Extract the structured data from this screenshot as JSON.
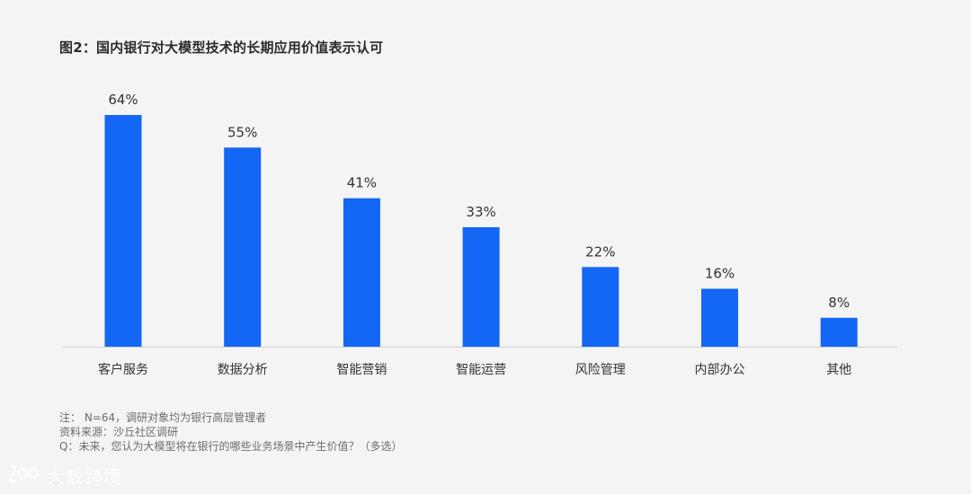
{
  "title": "图2：国内银行对大模型技术的长期应用价值表示认可",
  "notes": {
    "note": "注： N=64，调研对象均为银行高层管理者",
    "source": "资料来源：沙丘社区调研",
    "question": "Q：未来，您认为大模型将在银行的哪些业务场景中产生价值？（多选）"
  },
  "watermark": {
    "text": "大数跨境",
    "icon": "logo-icon"
  },
  "colors": {
    "bar": "#1466f5",
    "axis": "#cfcfcf",
    "label": "#333333",
    "background": "#f4f4f4"
  },
  "chart_data": {
    "type": "bar",
    "categories": [
      "客户服务",
      "数据分析",
      "智能营销",
      "智能运营",
      "风险管理",
      "内部办公",
      "其他"
    ],
    "values": [
      64,
      55,
      41,
      33,
      22,
      16,
      8
    ],
    "value_labels": [
      "64%",
      "55%",
      "41%",
      "33%",
      "22%",
      "16%",
      "8%"
    ],
    "unit": "%",
    "ylim": [
      0,
      64
    ],
    "grid": false,
    "legend": "none"
  }
}
